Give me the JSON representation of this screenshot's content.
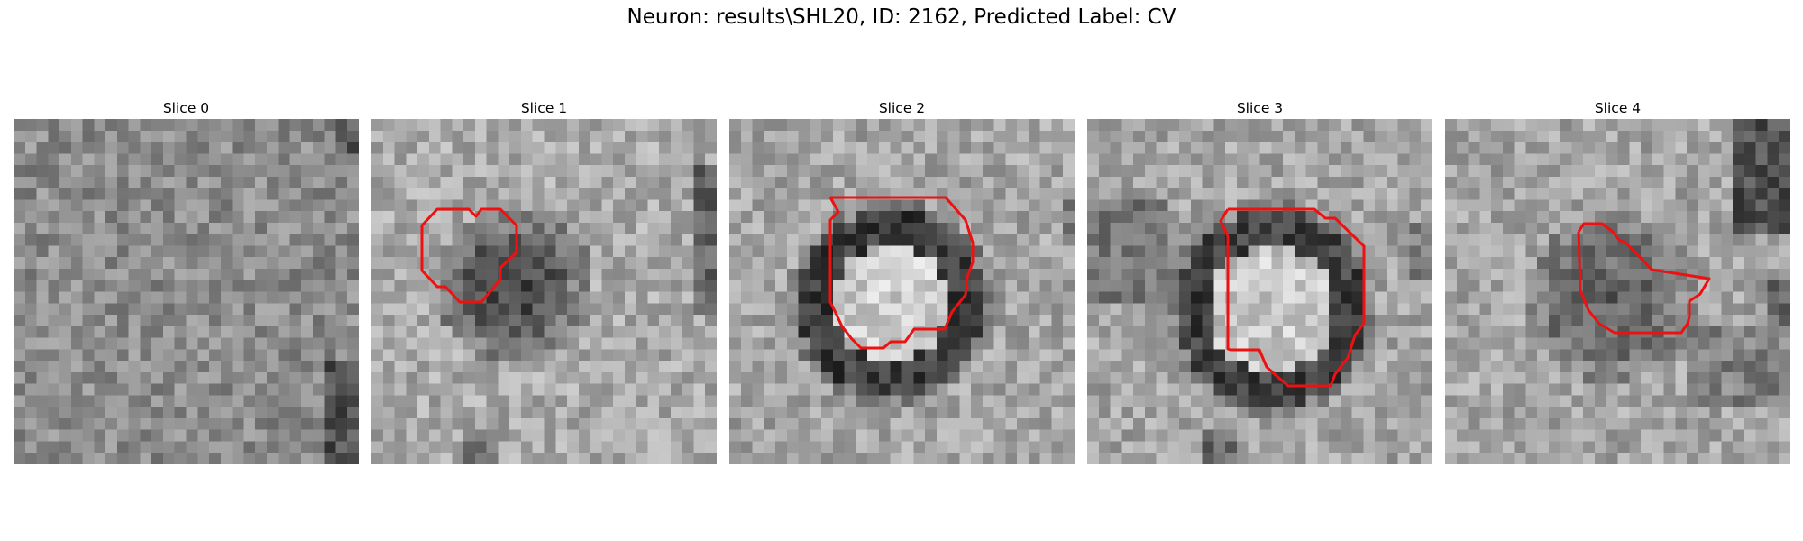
{
  "figure": {
    "title": "Neuron: results\\SHL20, ID: 2162, Predicted Label: CV",
    "contour_color": "#ee1111"
  },
  "slices": [
    {
      "title": "Slice 0",
      "has_contour": false
    },
    {
      "title": "Slice 1",
      "has_contour": true
    },
    {
      "title": "Slice 2",
      "has_contour": true
    },
    {
      "title": "Slice 3",
      "has_contour": true
    },
    {
      "title": "Slice 4",
      "has_contour": true
    }
  ]
}
